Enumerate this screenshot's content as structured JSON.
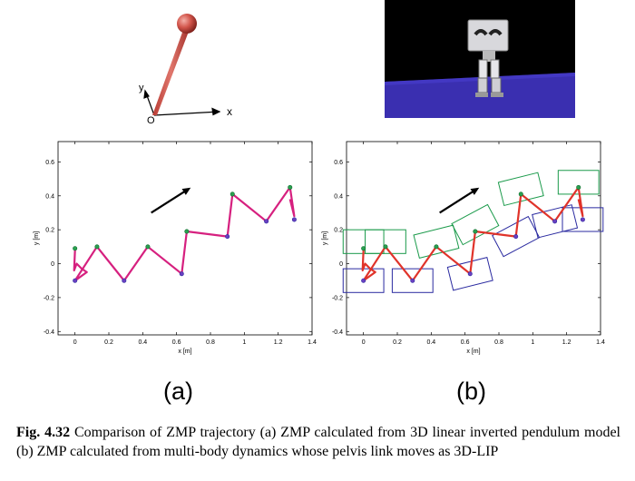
{
  "pendulum": {
    "axis_y": "y",
    "axis_x": "x",
    "origin": "O"
  },
  "robot_render": {
    "background": "#000000",
    "floor": "#3a2fb0"
  },
  "plots": [
    {
      "id": "a",
      "xlabel": "x [m]",
      "ylabel": "y [m]",
      "xticks": [
        "0",
        "0.2",
        "0.4",
        "0.6",
        "0.8",
        "1",
        "1.2",
        "1.4"
      ],
      "yticks": [
        "0.6",
        "0.4",
        "0.2",
        "0",
        "-0.2",
        "-0.4"
      ],
      "sublabel": "(a)"
    },
    {
      "id": "b",
      "xlabel": "x [m]",
      "ylabel": "y [m]",
      "xticks": [
        "0",
        "0.2",
        "0.4",
        "0.6",
        "0.8",
        "1",
        "1.2",
        "1.4"
      ],
      "yticks": [
        "0.6",
        "0.4",
        "0.2",
        "0",
        "-0.2",
        "-0.4"
      ],
      "sublabel": "(b)"
    }
  ],
  "chart_data": [
    {
      "type": "line",
      "xlim": [
        -0.1,
        1.4
      ],
      "ylim": [
        -0.42,
        0.72
      ],
      "series": [
        {
          "color": "#d6207f",
          "x": [
            0.0,
            -0.005,
            0.01,
            0.04,
            0.07,
            0.0,
            0.13,
            0.29,
            0.43,
            0.63,
            0.66,
            0.9,
            0.93,
            1.13,
            1.27,
            1.295,
            1.27
          ],
          "y": [
            0.08,
            -0.04,
            0.0,
            -0.03,
            -0.05,
            -0.1,
            0.1,
            -0.1,
            0.1,
            -0.06,
            0.19,
            0.16,
            0.41,
            0.25,
            0.45,
            0.28,
            0.38
          ]
        }
      ],
      "markers_green": [
        [
          0.0,
          0.09
        ],
        [
          0.13,
          0.1
        ],
        [
          0.43,
          0.1
        ],
        [
          0.66,
          0.19
        ],
        [
          0.93,
          0.41
        ],
        [
          1.27,
          0.45
        ]
      ],
      "markers_blue": [
        [
          0.0,
          -0.1
        ],
        [
          0.29,
          -0.1
        ],
        [
          0.63,
          -0.06
        ],
        [
          0.9,
          0.16
        ],
        [
          1.13,
          0.25
        ],
        [
          1.295,
          0.26
        ]
      ]
    },
    {
      "type": "line",
      "xlim": [
        -0.1,
        1.4
      ],
      "ylim": [
        -0.42,
        0.72
      ],
      "series": [
        {
          "color": "#e0332a",
          "x": [
            0.0,
            -0.005,
            0.01,
            0.04,
            0.07,
            0.0,
            0.13,
            0.29,
            0.43,
            0.63,
            0.66,
            0.9,
            0.93,
            1.13,
            1.27,
            1.295,
            1.27
          ],
          "y": [
            0.08,
            -0.04,
            0.0,
            -0.03,
            -0.05,
            -0.1,
            0.1,
            -0.1,
            0.1,
            -0.06,
            0.19,
            0.16,
            0.41,
            0.25,
            0.45,
            0.28,
            0.38
          ]
        }
      ],
      "markers_green": [
        [
          0.0,
          0.09
        ],
        [
          0.13,
          0.1
        ],
        [
          0.43,
          0.1
        ],
        [
          0.66,
          0.19
        ],
        [
          0.93,
          0.41
        ],
        [
          1.27,
          0.45
        ]
      ],
      "markers_blue": [
        [
          0.0,
          -0.1
        ],
        [
          0.29,
          -0.1
        ],
        [
          0.63,
          -0.06
        ],
        [
          0.9,
          0.16
        ],
        [
          1.13,
          0.25
        ],
        [
          1.295,
          0.26
        ]
      ],
      "footprints_green": [
        [
          0.0,
          0.13,
          0.0
        ],
        [
          0.13,
          0.13,
          0.0
        ],
        [
          0.43,
          0.13,
          14
        ],
        [
          0.66,
          0.23,
          28
        ],
        [
          0.93,
          0.44,
          14
        ],
        [
          1.27,
          0.48,
          0.0
        ]
      ],
      "footprints_blue": [
        [
          0.0,
          -0.1,
          0.0
        ],
        [
          0.29,
          -0.1,
          0.0
        ],
        [
          0.63,
          -0.06,
          14
        ],
        [
          0.9,
          0.16,
          28
        ],
        [
          1.13,
          0.25,
          14
        ],
        [
          1.295,
          0.26,
          0.0
        ]
      ],
      "footprint_size_m": [
        0.24,
        0.14
      ]
    }
  ],
  "caption": {
    "label": "Fig. 4.32",
    "text": "Comparison of ZMP trajectory (a) ZMP calculated from 3D linear inverted pendulum model (b) ZMP calculated from multi-body dynamics whose pelvis link moves as 3D-LIP"
  }
}
